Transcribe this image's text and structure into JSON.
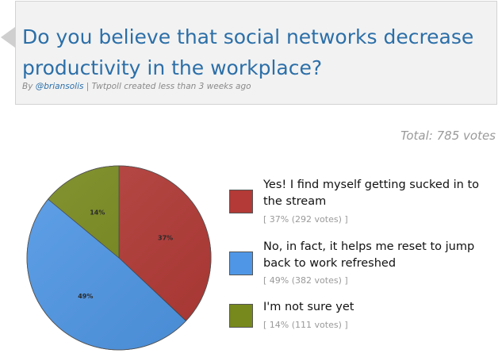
{
  "poll": {
    "question": "Do you believe that social networks decrease productivity in the workplace?",
    "byline_prefix": "By ",
    "author": "@briansolis",
    "byline_suffix": " | Twtpoll created less than 3 weeks ago",
    "total": "Total: 785 votes"
  },
  "chart_data": {
    "type": "pie",
    "total_votes": 785,
    "slices": [
      {
        "label": "Yes! I find myself getting sucked in to the stream",
        "percent": 37,
        "votes": 292,
        "pct_label": "37%",
        "detail": "[ 37% (292 votes) ]",
        "color": "#b33a36"
      },
      {
        "label": "No, in fact, it helps me reset to jump back to work refreshed",
        "percent": 49,
        "votes": 382,
        "pct_label": "49%",
        "detail": "[ 49% (382 votes) ]",
        "color": "#4f97e6"
      },
      {
        "label": "I'm not sure yet",
        "percent": 14,
        "votes": 111,
        "pct_label": "14%",
        "detail": "[ 14% (111 votes) ]",
        "color": "#77891c"
      }
    ],
    "legend": "right"
  }
}
